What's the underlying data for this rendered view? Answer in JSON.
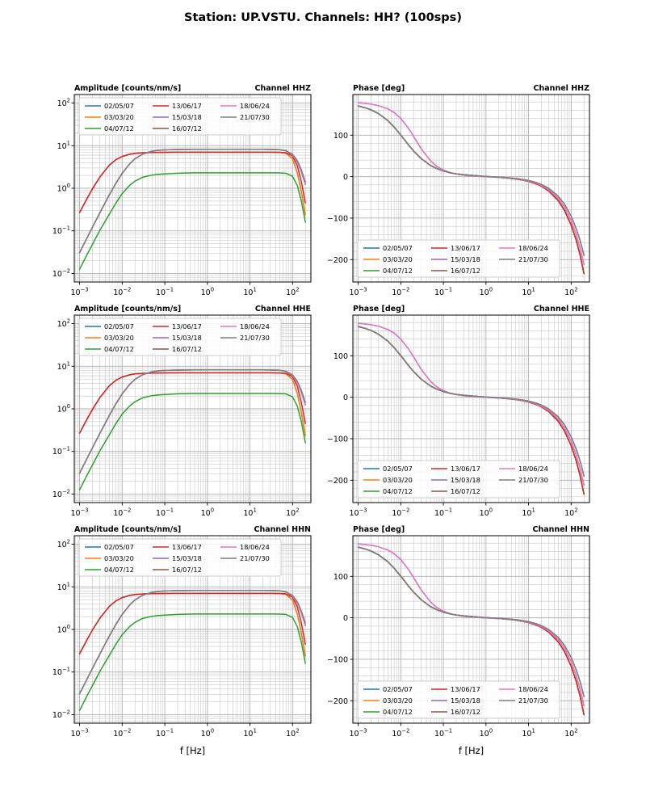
{
  "page": {
    "title": "Station: UP.VSTU. Channels: HH? (100sps)"
  },
  "series": [
    {
      "label": "02/05/07",
      "color": "#1f77b4",
      "amp_curve": "A1",
      "phase_curve": "P3"
    },
    {
      "label": "03/03/20",
      "color": "#ff7f0e",
      "amp_curve": "A1",
      "phase_curve": "P3"
    },
    {
      "label": "04/07/12",
      "color": "#2ca02c",
      "amp_curve": "B",
      "phase_curve": "P3"
    },
    {
      "label": "13/06/17",
      "color": "#d62728",
      "amp_curve": "A2",
      "phase_curve": "P3"
    },
    {
      "label": "15/03/18",
      "color": "#9467bd",
      "amp_curve": "C",
      "phase_curve": "P1"
    },
    {
      "label": "16/07/12",
      "color": "#8c564b",
      "amp_curve": "C",
      "phase_curve": "P2"
    },
    {
      "label": "18/06/24",
      "color": "#e377c2",
      "amp_curve": "C",
      "phase_curve": "P1"
    },
    {
      "label": "21/07/30",
      "color": "#7f7f7f",
      "amp_curve": "C2",
      "phase_curve": "P2"
    }
  ],
  "chart_data": {
    "type": "line",
    "title": "Station: UP.VSTU. Channels: HH? (100sps)",
    "xlabel": "f [Hz]",
    "xscale": "log",
    "x_amp": [
      0.001,
      0.0015,
      0.002,
      0.003,
      0.005,
      0.007,
      0.01,
      0.015,
      0.02,
      0.03,
      0.05,
      0.07,
      0.1,
      0.2,
      0.5,
      1,
      2,
      5,
      10,
      20,
      30,
      50,
      70,
      100,
      130,
      160,
      200
    ],
    "amp_curves": {
      "A1": [
        0.27,
        0.58,
        0.97,
        1.85,
        3.5,
        4.63,
        5.6,
        6.3,
        6.59,
        6.81,
        6.93,
        6.96,
        6.98,
        7.0,
        7.0,
        7.0,
        7.0,
        7.0,
        7.0,
        7.0,
        7.0,
        6.95,
        6.66,
        4.89,
        2.27,
        0.85,
        0.24
      ],
      "A2": [
        0.27,
        0.58,
        0.97,
        1.85,
        3.5,
        4.63,
        5.6,
        6.3,
        6.59,
        6.81,
        6.93,
        6.96,
        6.98,
        7.0,
        7.0,
        7.0,
        7.0,
        7.0,
        7.0,
        7.0,
        7.0,
        6.98,
        6.82,
        5.7,
        3.34,
        1.45,
        0.45
      ],
      "B": [
        0.0126,
        0.028,
        0.048,
        0.104,
        0.247,
        0.44,
        0.75,
        1.17,
        1.47,
        1.81,
        2.04,
        2.12,
        2.18,
        2.25,
        2.3,
        2.3,
        2.3,
        2.3,
        2.3,
        2.3,
        2.3,
        2.29,
        2.25,
        1.91,
        1.15,
        0.51,
        0.16
      ],
      "C": [
        0.031,
        0.069,
        0.122,
        0.269,
        0.705,
        1.28,
        2.24,
        3.76,
        4.93,
        6.33,
        7.41,
        7.78,
        7.99,
        8.15,
        8.19,
        8.2,
        8.2,
        8.2,
        8.2,
        8.2,
        8.18,
        8.02,
        7.57,
        6.07,
        4.1,
        2.49,
        1.24
      ],
      "C2": [
        0.031,
        0.069,
        0.122,
        0.269,
        0.705,
        1.28,
        2.24,
        3.76,
        4.93,
        6.33,
        7.41,
        7.78,
        7.99,
        8.15,
        8.19,
        8.2,
        8.2,
        8.2,
        8.2,
        8.2,
        8.18,
        8.05,
        7.65,
        6.3,
        4.41,
        2.76,
        1.41
      ]
    },
    "x_phase": [
      0.001,
      0.0015,
      0.002,
      0.003,
      0.005,
      0.007,
      0.01,
      0.015,
      0.02,
      0.03,
      0.05,
      0.07,
      0.1,
      0.15,
      0.2,
      0.3,
      0.5,
      1,
      2,
      3,
      5,
      7,
      10,
      15,
      20,
      30,
      50,
      70,
      100,
      130,
      160,
      200
    ],
    "phase_curves": {
      "P1": [
        177.9,
        176.5,
        174.9,
        171.4,
        163.4,
        154.5,
        140.6,
        117.4,
        97.2,
        67.4,
        38.0,
        25.0,
        15.9,
        9.4,
        6.5,
        3.8,
        1.5,
        -0.3,
        -1.9,
        -3.0,
        -5.2,
        -7.3,
        -10.5,
        -15.8,
        -21.1,
        -31.8,
        -53.0,
        -74.0,
        -106.0,
        -138.0,
        -170.0,
        -212.0
      ],
      "P2": [
        170.5,
        165.7,
        161.1,
        151.9,
        134.8,
        119.4,
        100.4,
        77.3,
        61.9,
        43.6,
        27.0,
        19.5,
        13.7,
        9.1,
        6.9,
        4.6,
        2.7,
        0.4,
        -1.2,
        -2.4,
        -4.5,
        -6.5,
        -9.2,
        -14.0,
        -18.8,
        -28.3,
        -47.5,
        -66.6,
        -95.2,
        -124.0,
        -152.0,
        -190.0
      ],
      "P3": [
        170.5,
        165.7,
        161.1,
        151.9,
        134.8,
        119.4,
        100.4,
        77.3,
        61.9,
        43.6,
        27.0,
        19.5,
        13.7,
        9.1,
        6.9,
        4.6,
        2.7,
        0.2,
        -1.6,
        -3.0,
        -5.6,
        -8.0,
        -11.4,
        -17.3,
        -23.2,
        -34.8,
        -58.2,
        -81.5,
        -116.6,
        -151.6,
        -186.6,
        -233.6
      ]
    },
    "axes": {
      "xlim_log": [
        -3.125,
        2.43
      ],
      "amp_ylim_log": [
        -2.2,
        2.2
      ],
      "phase_ylim": [
        -254,
        198
      ],
      "xticks_exp": [
        -3,
        -2,
        -1,
        0,
        1,
        2
      ],
      "amp_yticks_exp": [
        -2,
        -1,
        0,
        1,
        2
      ],
      "phase_yticks": [
        -200,
        -100,
        0,
        100
      ],
      "grid": "both"
    },
    "charts": [
      {
        "id": "amplitude-hhz",
        "kind": "amp",
        "title_left": "Amplitude [counts/nm/s]",
        "title_right": "Channel HHZ",
        "legend": "upper",
        "xlabel": false
      },
      {
        "id": "phase-hhz",
        "kind": "phase",
        "title_left": "Phase [deg]",
        "title_right": "Channel HHZ",
        "legend": "lower",
        "xlabel": false
      },
      {
        "id": "amplitude-hhe",
        "kind": "amp",
        "title_left": "Amplitude [counts/nm/s]",
        "title_right": "Channel HHE",
        "legend": "upper",
        "xlabel": false
      },
      {
        "id": "phase-hhe",
        "kind": "phase",
        "title_left": "Phase [deg]",
        "title_right": "Channel HHE",
        "legend": "lower",
        "xlabel": false
      },
      {
        "id": "amplitude-hhn",
        "kind": "amp",
        "title_left": "Amplitude [counts/nm/s]",
        "title_right": "Channel HHN",
        "legend": "upper",
        "xlabel": true
      },
      {
        "id": "phase-hhn",
        "kind": "phase",
        "title_left": "Phase [deg]",
        "title_right": "Channel HHN",
        "legend": "lower",
        "xlabel": true
      }
    ]
  }
}
